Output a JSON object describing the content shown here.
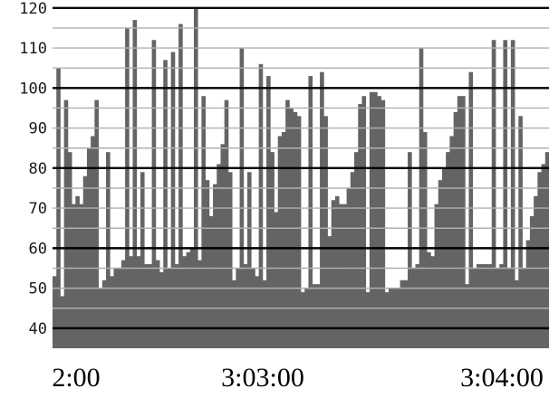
{
  "chart_data": {
    "type": "bar",
    "title": "",
    "xlabel": "",
    "ylabel": "",
    "ylim": [
      35,
      122
    ],
    "grid": true,
    "grid_minor_step": 5,
    "grid_major_step": 20,
    "y_ticks": [
      "40",
      "50",
      "60",
      "70",
      "80",
      "90",
      "100",
      "110",
      "120"
    ],
    "x_ticks": [
      {
        "label": "2:00",
        "index": 0
      },
      {
        "label": "3:03:00",
        "index": 60
      },
      {
        "label": "3:04:00",
        "index": 120
      }
    ],
    "values": [
      53,
      105,
      48,
      97,
      84,
      71,
      73,
      71,
      78,
      85,
      88,
      97,
      50,
      52,
      84,
      53,
      55,
      55,
      57,
      115,
      58,
      117,
      58,
      79,
      56,
      56,
      112,
      57,
      54,
      107,
      55,
      109,
      56,
      116,
      58,
      59,
      60,
      120,
      57,
      98,
      77,
      68,
      76,
      81,
      86,
      97,
      79,
      52,
      55,
      110,
      56,
      79,
      55,
      53,
      106,
      52,
      103,
      84,
      69,
      88,
      89,
      97,
      95,
      94,
      93,
      49,
      50,
      103,
      51,
      51,
      104,
      93,
      63,
      72,
      73,
      71,
      71,
      75,
      79,
      84,
      96,
      98,
      49,
      99,
      99,
      98,
      97,
      49,
      50,
      50,
      50,
      52,
      52,
      84,
      55,
      56,
      110,
      89,
      59,
      58,
      71,
      77,
      80,
      84,
      88,
      94,
      98,
      98,
      51,
      104,
      55,
      56,
      56,
      56,
      56,
      112,
      55,
      56,
      112,
      55,
      112,
      52,
      93,
      55,
      62,
      68,
      73,
      79,
      81,
      84
    ]
  },
  "colors": {
    "bar": "#646464",
    "grid_minor": "#b0b0b0",
    "grid_major": "#000000",
    "background": "#ffffff"
  }
}
